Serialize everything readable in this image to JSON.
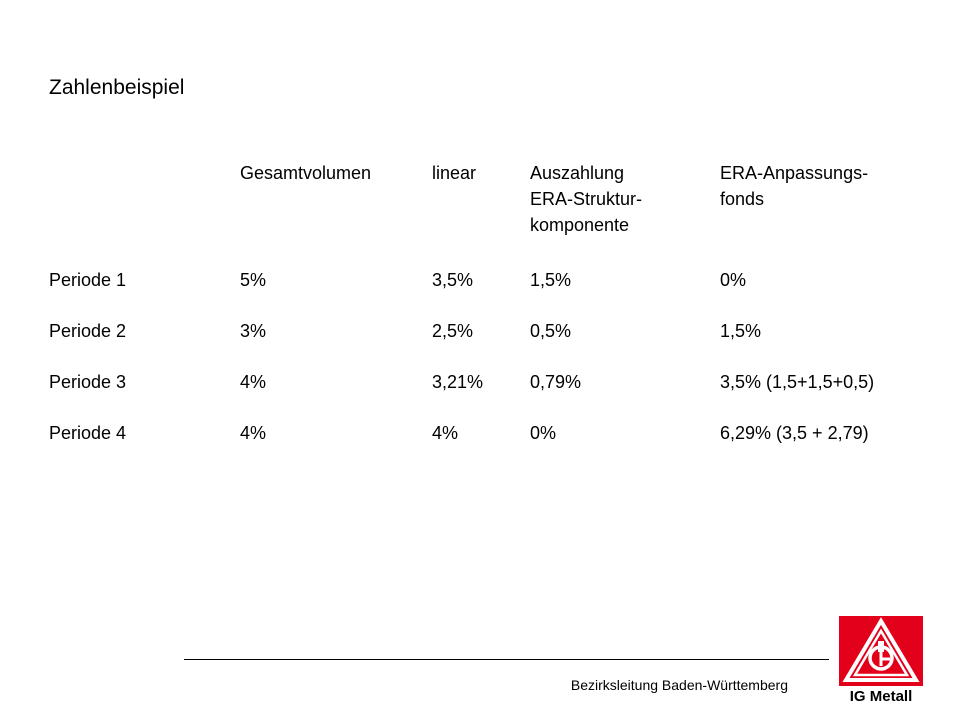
{
  "title": "Zahlenbeispiel",
  "table": {
    "headers": [
      "",
      "Gesamtvolumen",
      "linear",
      "Auszahlung\nERA-Struktur-\nkomponente",
      "ERA-Anpassungs-\nfonds"
    ],
    "rows": [
      [
        "Periode 1",
        "5%",
        "3,5%",
        "1,5%",
        "0%"
      ],
      [
        "Periode 2",
        "3%",
        "2,5%",
        "0,5%",
        "1,5%"
      ],
      [
        "Periode 3",
        "4%",
        "3,21%",
        "0,79%",
        "3,5% (1,5+1,5+0,5)"
      ],
      [
        "Periode 4",
        "4%",
        "4%",
        "0%",
        "6,29% (3,5 + 2,79)"
      ]
    ]
  },
  "footer": {
    "text": "Bezirksleitung Baden-Württemberg"
  },
  "logo": {
    "label": "IG Metall",
    "brand_color": "#e2001a"
  }
}
